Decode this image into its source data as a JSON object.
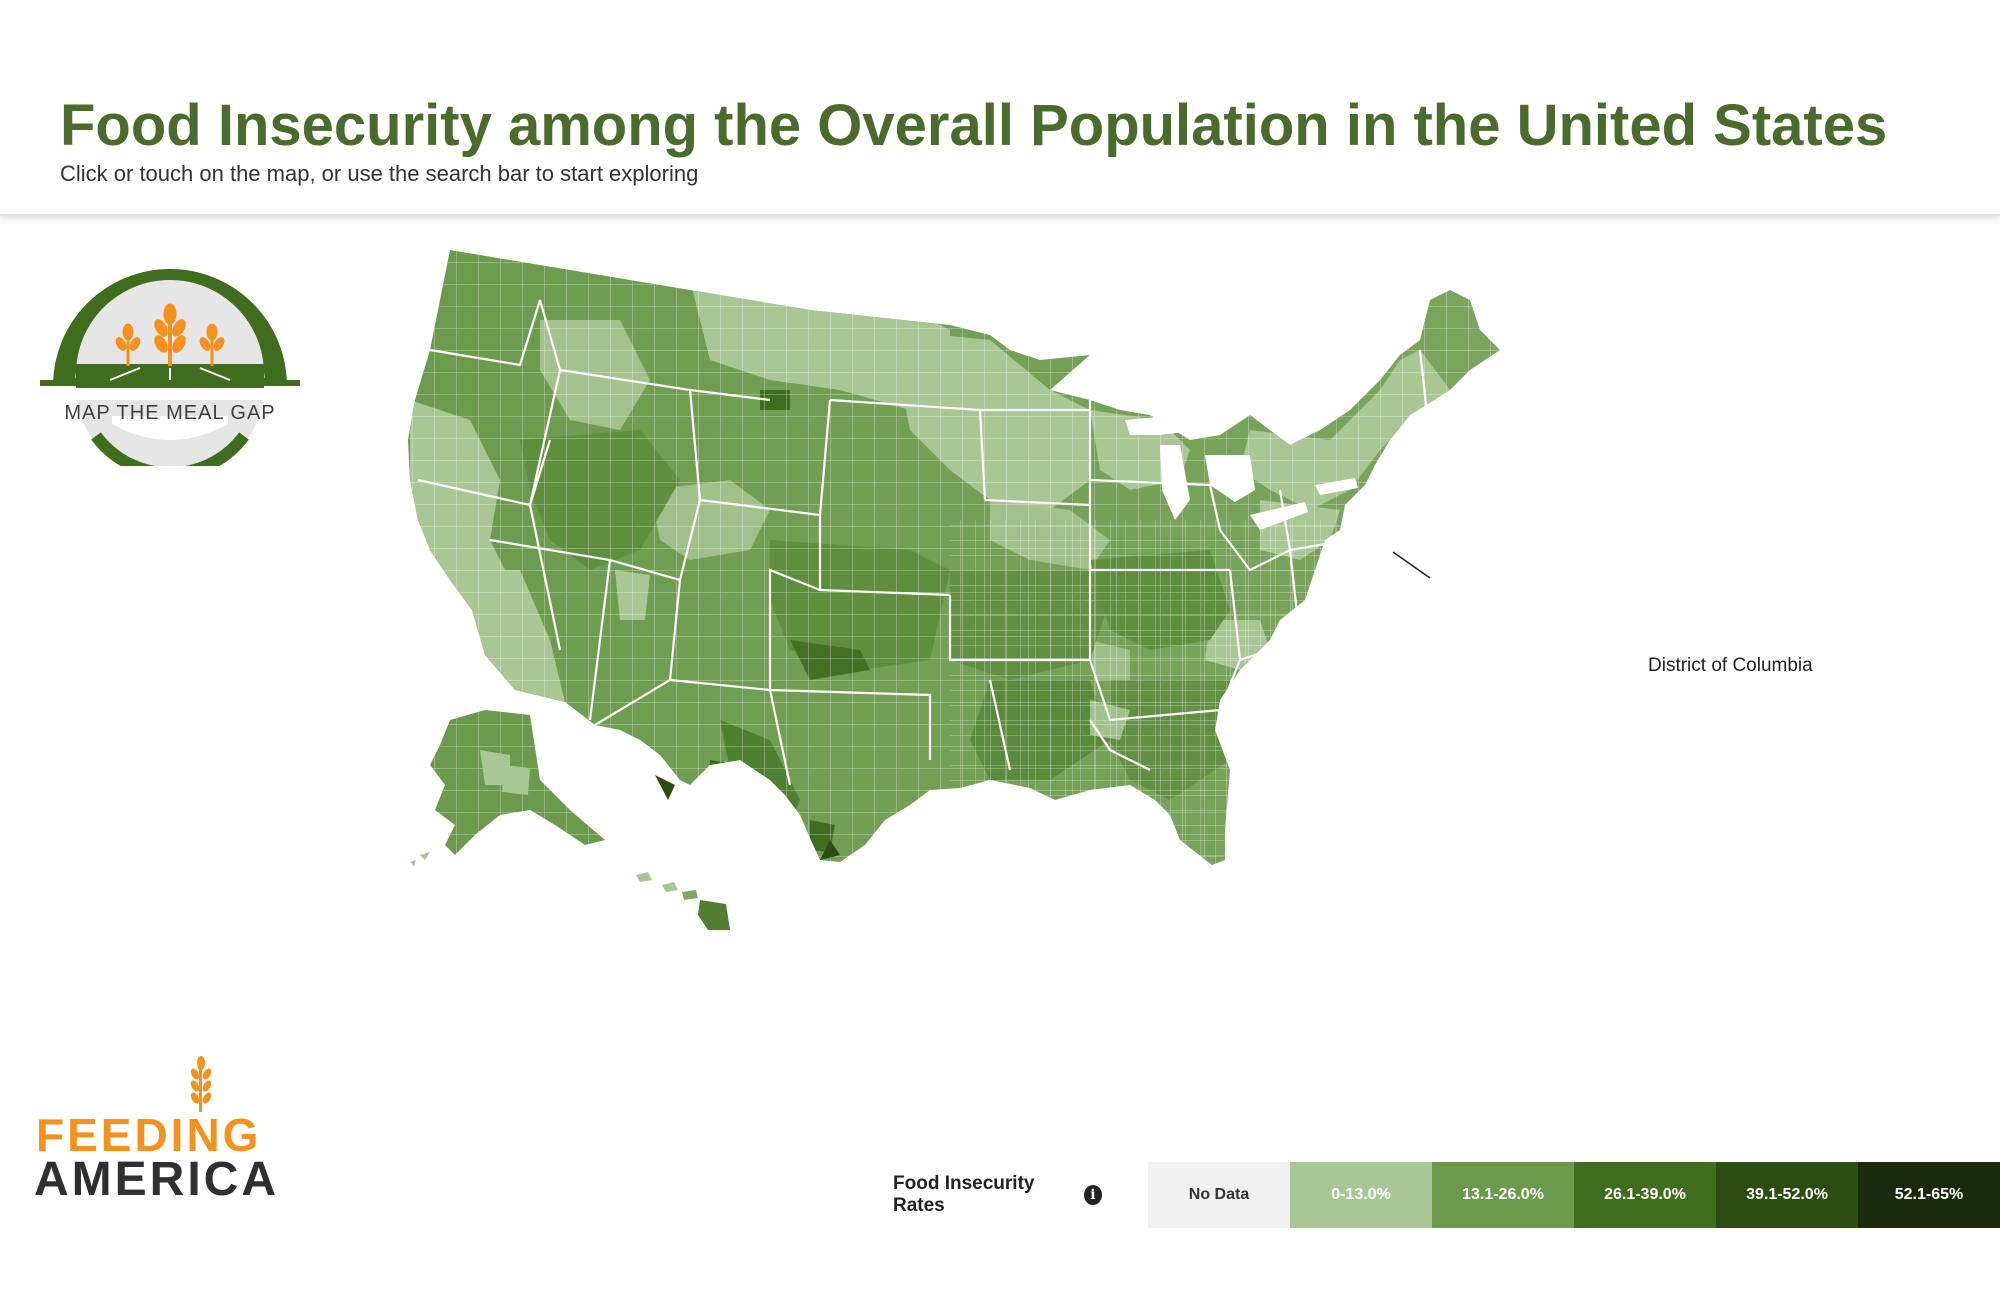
{
  "header": {
    "title": "Food Insecurity among the Overall Population in the United States",
    "subtitle": "Click or touch on the map, or use the search bar to start exploring"
  },
  "logo_map_the_meal_gap": {
    "text": "MAP THE MEAL GAP",
    "icon": "wheat-icon"
  },
  "logo_feeding_america": {
    "line1": "FEEDING",
    "line2": "AMERICA",
    "icon": "wheat-icon"
  },
  "map": {
    "callout_label": "District of Columbia",
    "colors": {
      "no_data": "#f1f1f1",
      "light": "#a9c695",
      "medium": "#6b9a4d",
      "land_mid": "#7fa862",
      "dark": "#3f6d1d",
      "darker": "#2c4c12",
      "darkest": "#1b2a0d"
    }
  },
  "legend": {
    "title": "Food Insecurity Rates",
    "info_icon": "info-icon",
    "items": [
      {
        "label": "No Data",
        "color": "#f1f1f1",
        "text_color": "#333333"
      },
      {
        "label": "0-13.0%",
        "color": "#a9c695",
        "text_color": "#ffffff"
      },
      {
        "label": "13.1-26.0%",
        "color": "#6b9a4d",
        "text_color": "#ffffff"
      },
      {
        "label": "26.1-39.0%",
        "color": "#3f6d1d",
        "text_color": "#ffffff"
      },
      {
        "label": "39.1-52.0%",
        "color": "#2c4c12",
        "text_color": "#ffffff"
      },
      {
        "label": "52.1-65%",
        "color": "#1b2a0d",
        "text_color": "#ffffff"
      }
    ]
  }
}
